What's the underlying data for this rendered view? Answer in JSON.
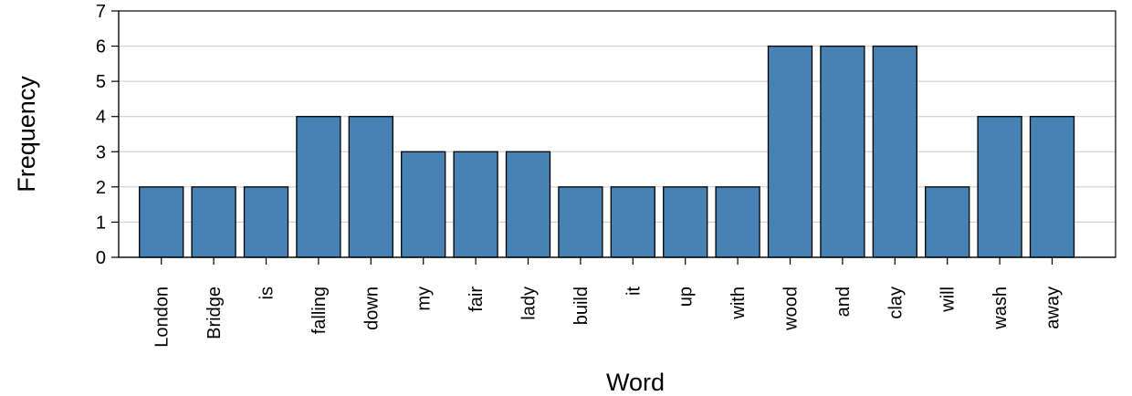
{
  "chart_data": {
    "type": "bar",
    "title": "",
    "xlabel": "Word",
    "ylabel": "Frequency",
    "categories": [
      "London",
      "Bridge",
      "is",
      "falling",
      "down",
      "my",
      "fair",
      "lady",
      "build",
      "it",
      "up",
      "with",
      "wood",
      "and",
      "clay",
      "will",
      "wash",
      "away"
    ],
    "values": [
      2,
      2,
      2,
      4,
      4,
      3,
      3,
      3,
      2,
      2,
      2,
      2,
      6,
      6,
      6,
      2,
      4,
      4
    ],
    "ylim": [
      0,
      7
    ],
    "yticks": [
      0,
      1,
      2,
      3,
      4,
      5,
      6,
      7
    ],
    "grid": "horizontal",
    "colors": {
      "bar": "#4682b4",
      "bar_edge": "#000000",
      "grid": "#c8c8c8",
      "axis": "#000000"
    }
  }
}
